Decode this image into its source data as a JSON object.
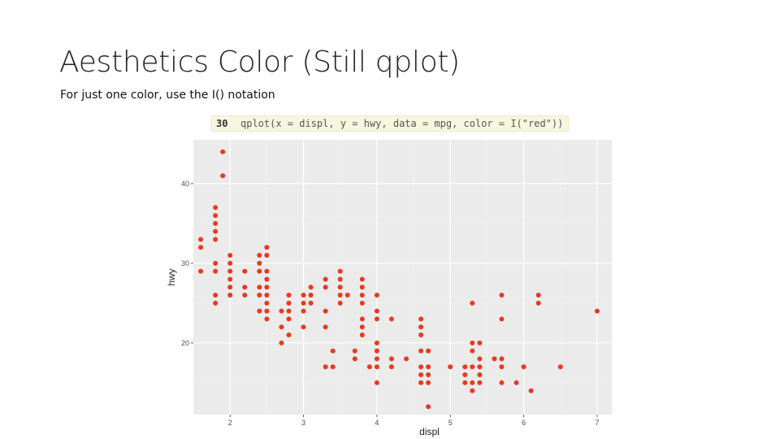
{
  "slide": {
    "title": "Aesthetics Color (Still qplot)",
    "subtitle": "For just one color, use the I() notation"
  },
  "code": {
    "line_number": "30",
    "text": "qplot(x = displ, y = hwy, data = mpg, color = I(\"red\"))"
  },
  "colors": {
    "panel_background": "#ebebeb",
    "grid_major": "#ffffff",
    "grid_minor": "#f3f3f3",
    "point": "#e8391d",
    "tick_text": "#4d4d4d",
    "axis_title": "#222222"
  },
  "chart_data": {
    "type": "scatter",
    "xlabel": "displ",
    "ylabel": "hwy",
    "xlim": [
      1.5,
      7.2
    ],
    "ylim": [
      11,
      45.5
    ],
    "x_ticks": [
      2,
      3,
      4,
      5,
      6,
      7
    ],
    "y_ticks": [
      20,
      30,
      40
    ],
    "x_tick_labels": [
      "2",
      "3",
      "4",
      "5",
      "6",
      "7"
    ],
    "y_tick_labels": [
      "20",
      "30",
      "40"
    ],
    "grid": true,
    "legend": "none",
    "points": [
      [
        1.6,
        33
      ],
      [
        1.6,
        32
      ],
      [
        1.6,
        29
      ],
      [
        1.8,
        37
      ],
      [
        1.8,
        36
      ],
      [
        1.8,
        35
      ],
      [
        1.8,
        34
      ],
      [
        1.8,
        33
      ],
      [
        1.8,
        30
      ],
      [
        1.8,
        29
      ],
      [
        1.8,
        26
      ],
      [
        1.8,
        25
      ],
      [
        1.9,
        44
      ],
      [
        1.9,
        41
      ],
      [
        2.0,
        31
      ],
      [
        2.0,
        30
      ],
      [
        2.0,
        29
      ],
      [
        2.0,
        28
      ],
      [
        2.0,
        27
      ],
      [
        2.0,
        26
      ],
      [
        2.2,
        29
      ],
      [
        2.2,
        27
      ],
      [
        2.2,
        26
      ],
      [
        2.4,
        31
      ],
      [
        2.4,
        30
      ],
      [
        2.4,
        29
      ],
      [
        2.4,
        27
      ],
      [
        2.4,
        26
      ],
      [
        2.4,
        24
      ],
      [
        2.5,
        32
      ],
      [
        2.5,
        31
      ],
      [
        2.5,
        29
      ],
      [
        2.5,
        28
      ],
      [
        2.5,
        27
      ],
      [
        2.5,
        26
      ],
      [
        2.5,
        25
      ],
      [
        2.5,
        24
      ],
      [
        2.5,
        23
      ],
      [
        2.7,
        24
      ],
      [
        2.7,
        22
      ],
      [
        2.7,
        20
      ],
      [
        2.8,
        26
      ],
      [
        2.8,
        25
      ],
      [
        2.8,
        24
      ],
      [
        2.8,
        23
      ],
      [
        2.8,
        21
      ],
      [
        3.0,
        26
      ],
      [
        3.0,
        25
      ],
      [
        3.0,
        24
      ],
      [
        3.0,
        22
      ],
      [
        3.1,
        27
      ],
      [
        3.1,
        26
      ],
      [
        3.1,
        25
      ],
      [
        3.3,
        28
      ],
      [
        3.3,
        27
      ],
      [
        3.3,
        24
      ],
      [
        3.3,
        22
      ],
      [
        3.3,
        17
      ],
      [
        3.4,
        19
      ],
      [
        3.4,
        17
      ],
      [
        3.5,
        29
      ],
      [
        3.5,
        28
      ],
      [
        3.5,
        27
      ],
      [
        3.5,
        26
      ],
      [
        3.5,
        25
      ],
      [
        3.6,
        26
      ],
      [
        3.7,
        19
      ],
      [
        3.7,
        18
      ],
      [
        3.8,
        28
      ],
      [
        3.8,
        27
      ],
      [
        3.8,
        26
      ],
      [
        3.8,
        25
      ],
      [
        3.8,
        23
      ],
      [
        3.8,
        22
      ],
      [
        3.8,
        21
      ],
      [
        3.9,
        17
      ],
      [
        4.0,
        26
      ],
      [
        4.0,
        24
      ],
      [
        4.0,
        23
      ],
      [
        4.0,
        20
      ],
      [
        4.0,
        19
      ],
      [
        4.0,
        18
      ],
      [
        4.0,
        17
      ],
      [
        4.0,
        15
      ],
      [
        4.2,
        23
      ],
      [
        4.2,
        18
      ],
      [
        4.2,
        17
      ],
      [
        4.4,
        18
      ],
      [
        4.6,
        23
      ],
      [
        4.6,
        22
      ],
      [
        4.6,
        21
      ],
      [
        4.6,
        19
      ],
      [
        4.6,
        17
      ],
      [
        4.6,
        16
      ],
      [
        4.6,
        15
      ],
      [
        4.7,
        19
      ],
      [
        4.7,
        17
      ],
      [
        4.7,
        16
      ],
      [
        4.7,
        15
      ],
      [
        4.7,
        12
      ],
      [
        5.0,
        17
      ],
      [
        5.2,
        17
      ],
      [
        5.2,
        16
      ],
      [
        5.2,
        15
      ],
      [
        5.3,
        25
      ],
      [
        5.3,
        20
      ],
      [
        5.3,
        19
      ],
      [
        5.3,
        17
      ],
      [
        5.3,
        15
      ],
      [
        5.3,
        14
      ],
      [
        5.4,
        20
      ],
      [
        5.4,
        18
      ],
      [
        5.4,
        17
      ],
      [
        5.4,
        16
      ],
      [
        5.4,
        15
      ],
      [
        5.6,
        18
      ],
      [
        5.7,
        26
      ],
      [
        5.7,
        23
      ],
      [
        5.7,
        18
      ],
      [
        5.7,
        17
      ],
      [
        5.7,
        15
      ],
      [
        5.9,
        15
      ],
      [
        6.0,
        17
      ],
      [
        6.1,
        14
      ],
      [
        6.2,
        26
      ],
      [
        6.2,
        25
      ],
      [
        6.5,
        17
      ],
      [
        7.0,
        24
      ]
    ]
  }
}
